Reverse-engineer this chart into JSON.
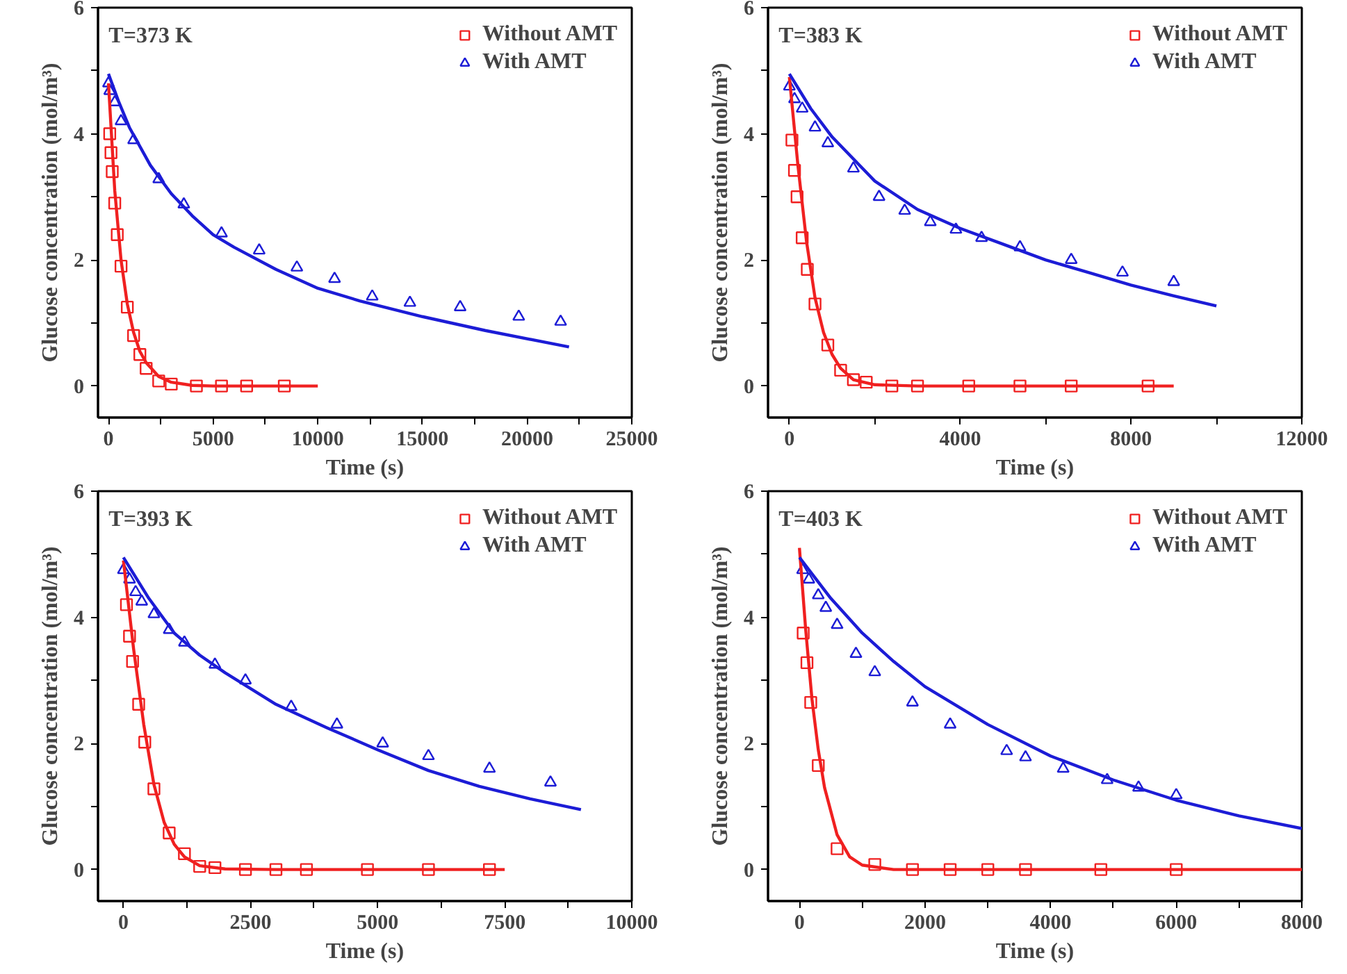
{
  "chart_data": [
    {
      "type": "scatter",
      "xlabel": "Time (s)",
      "ylabel": "Glucose concentration (mol/m³)",
      "annotations": [
        "T=373 K"
      ],
      "xlim": [
        -500,
        25000
      ],
      "ylim": [
        -0.5,
        6
      ],
      "xticks": [
        0,
        {
          "value": 2500,
          "label": null
        },
        5000,
        {
          "value": 7500,
          "label": null
        },
        10000,
        {
          "value": 12500,
          "label": null
        },
        15000,
        {
          "value": 17500,
          "label": null
        },
        20000,
        {
          "value": 22500,
          "label": null
        },
        25000
      ],
      "yticks": [
        0,
        {
          "value": 1,
          "label": null
        },
        2,
        {
          "value": 3,
          "label": null
        },
        4,
        {
          "value": 5,
          "label": null
        },
        6
      ],
      "grid": false,
      "legend": "top right",
      "series": [
        {
          "name": "Without AMT",
          "type": "scatter",
          "marker": "square",
          "color": "#f02020",
          "x": [
            60,
            120,
            180,
            300,
            420,
            600,
            900,
            1200,
            1500,
            1800,
            2400,
            3000,
            4200,
            5400,
            6600,
            8400
          ],
          "values": [
            4.0,
            3.7,
            3.4,
            2.9,
            2.4,
            1.9,
            1.25,
            0.8,
            0.5,
            0.28,
            0.08,
            0.03,
            0,
            0,
            0,
            0
          ]
        },
        {
          "name": "With AMT",
          "type": "scatter",
          "marker": "triangle",
          "color": "#1c1cd6",
          "x": [
            0,
            60,
            300,
            600,
            1200,
            2400,
            3600,
            5400,
            7200,
            9000,
            10800,
            12600,
            14400,
            16800,
            19600,
            21600
          ],
          "values": [
            4.8,
            4.68,
            4.5,
            4.2,
            3.9,
            3.28,
            2.88,
            2.42,
            2.15,
            1.88,
            1.7,
            1.42,
            1.32,
            1.25,
            1.1,
            1.02
          ]
        },
        {
          "type": "line",
          "marker": "none",
          "line_style": "solid",
          "color": "#f02020",
          "x": [
            0,
            300,
            600,
            900,
            1200,
            1500,
            1800,
            2400,
            3000,
            4000,
            5000,
            10000
          ],
          "values": [
            4.8,
            3.1,
            2.0,
            1.3,
            0.85,
            0.55,
            0.37,
            0.15,
            0.06,
            0.01,
            0,
            0
          ]
        },
        {
          "type": "line",
          "marker": "none",
          "line_style": "solid",
          "color": "#1c1cd6",
          "x": [
            0,
            500,
            1000,
            2000,
            3000,
            4000,
            5000,
            6000,
            8000,
            10000,
            12000,
            15000,
            18000,
            22000
          ],
          "values": [
            4.95,
            4.5,
            4.1,
            3.5,
            3.05,
            2.7,
            2.4,
            2.2,
            1.85,
            1.55,
            1.35,
            1.1,
            0.88,
            0.62
          ]
        }
      ]
    },
    {
      "type": "scatter",
      "xlabel": "Time (s)",
      "ylabel": "Glucose concentration (mol/m³)",
      "annotations": [
        "T=383 K"
      ],
      "xlim": [
        -500,
        12000
      ],
      "ylim": [
        -0.5,
        6
      ],
      "xticks": [
        0,
        {
          "value": 2000,
          "label": null
        },
        4000,
        {
          "value": 6000,
          "label": null
        },
        8000,
        {
          "value": 10000,
          "label": null
        },
        12000
      ],
      "yticks": [
        0,
        {
          "value": 1,
          "label": null
        },
        2,
        {
          "value": 3,
          "label": null
        },
        4,
        {
          "value": 5,
          "label": null
        },
        6
      ],
      "grid": false,
      "legend": "top right",
      "series": [
        {
          "name": "Without AMT",
          "type": "scatter",
          "marker": "square",
          "color": "#f02020",
          "x": [
            60,
            120,
            180,
            300,
            420,
            600,
            900,
            1200,
            1500,
            1800,
            2400,
            3000,
            4200,
            5400,
            6600,
            8400
          ],
          "values": [
            3.9,
            3.42,
            3.0,
            2.35,
            1.85,
            1.3,
            0.65,
            0.25,
            0.1,
            0.06,
            0,
            0,
            0,
            0,
            0,
            0
          ]
        },
        {
          "name": "With AMT",
          "type": "scatter",
          "marker": "triangle",
          "color": "#1c1cd6",
          "x": [
            0,
            120,
            300,
            600,
            900,
            1500,
            2100,
            2700,
            3300,
            3900,
            4500,
            5400,
            6600,
            7800,
            9000
          ],
          "values": [
            4.75,
            4.55,
            4.4,
            4.1,
            3.85,
            3.45,
            3.0,
            2.78,
            2.6,
            2.48,
            2.35,
            2.2,
            2.0,
            1.8,
            1.65
          ]
        },
        {
          "type": "line",
          "marker": "none",
          "line_style": "solid",
          "color": "#f02020",
          "x": [
            0,
            200,
            400,
            600,
            800,
            1000,
            1200,
            1500,
            2000,
            3000,
            9000
          ],
          "values": [
            4.9,
            3.5,
            2.3,
            1.4,
            0.85,
            0.5,
            0.28,
            0.1,
            0.02,
            0,
            0
          ]
        },
        {
          "type": "line",
          "marker": "none",
          "line_style": "solid",
          "color": "#1c1cd6",
          "x": [
            0,
            500,
            1000,
            2000,
            3000,
            4000,
            5000,
            6000,
            7000,
            8000,
            9000,
            10000
          ],
          "values": [
            4.95,
            4.4,
            3.95,
            3.25,
            2.8,
            2.5,
            2.25,
            2.0,
            1.8,
            1.6,
            1.43,
            1.27
          ]
        }
      ]
    },
    {
      "type": "scatter",
      "xlabel": "Time (s)",
      "ylabel": "Glucose concentration (mol/m³)",
      "annotations": [
        "T=393 K"
      ],
      "xlim": [
        -500,
        10000
      ],
      "ylim": [
        -0.5,
        6
      ],
      "xticks": [
        0,
        {
          "value": 1250,
          "label": null
        },
        2500,
        {
          "value": 3750,
          "label": null
        },
        5000,
        {
          "value": 6250,
          "label": null
        },
        7500,
        {
          "value": 8750,
          "label": null
        },
        10000
      ],
      "yticks": [
        0,
        {
          "value": 1,
          "label": null
        },
        2,
        {
          "value": 3,
          "label": null
        },
        4,
        {
          "value": 5,
          "label": null
        },
        6
      ],
      "grid": false,
      "legend": "top right",
      "series": [
        {
          "name": "Without AMT",
          "type": "scatter",
          "marker": "square",
          "color": "#f02020",
          "x": [
            60,
            120,
            180,
            300,
            420,
            600,
            900,
            1200,
            1500,
            1800,
            2400,
            3000,
            3600,
            4800,
            6000,
            7200
          ],
          "values": [
            4.2,
            3.7,
            3.3,
            2.62,
            2.02,
            1.28,
            0.58,
            0.25,
            0.05,
            0.03,
            0,
            0,
            0,
            0,
            0,
            0
          ]
        },
        {
          "name": "With AMT",
          "type": "scatter",
          "marker": "triangle",
          "color": "#1c1cd6",
          "x": [
            0,
            120,
            240,
            360,
            600,
            900,
            1200,
            1800,
            2400,
            3300,
            4200,
            5100,
            6000,
            7200,
            8400
          ],
          "values": [
            4.75,
            4.6,
            4.4,
            4.25,
            4.05,
            3.8,
            3.6,
            3.25,
            3.0,
            2.58,
            2.3,
            2.0,
            1.8,
            1.6,
            1.38
          ]
        },
        {
          "type": "line",
          "marker": "none",
          "line_style": "solid",
          "color": "#f02020",
          "x": [
            0,
            200,
            400,
            600,
            800,
            1000,
            1200,
            1500,
            2000,
            3000,
            7500
          ],
          "values": [
            4.9,
            3.5,
            2.3,
            1.35,
            0.75,
            0.4,
            0.2,
            0.06,
            0.01,
            0,
            0
          ]
        },
        {
          "type": "line",
          "marker": "none",
          "line_style": "solid",
          "color": "#1c1cd6",
          "x": [
            0,
            500,
            1000,
            1500,
            2000,
            3000,
            4000,
            5000,
            6000,
            7000,
            8000,
            9000
          ],
          "values": [
            4.95,
            4.3,
            3.75,
            3.4,
            3.12,
            2.62,
            2.25,
            1.9,
            1.57,
            1.32,
            1.12,
            0.95
          ]
        }
      ]
    },
    {
      "type": "scatter",
      "xlabel": "Time (s)",
      "ylabel": "Glucose concentration (mol/m³)",
      "annotations": [
        "T=403 K"
      ],
      "xlim": [
        -500,
        8000
      ],
      "ylim": [
        -0.5,
        6
      ],
      "xticks": [
        0,
        {
          "value": 1000,
          "label": null
        },
        2000,
        {
          "value": 3000,
          "label": null
        },
        4000,
        {
          "value": 5000,
          "label": null
        },
        6000,
        {
          "value": 7000,
          "label": null
        },
        8000
      ],
      "yticks": [
        0,
        {
          "value": 1,
          "label": null
        },
        2,
        {
          "value": 3,
          "label": null
        },
        4,
        {
          "value": 5,
          "label": null
        },
        6
      ],
      "grid": false,
      "legend": "top right",
      "series": [
        {
          "name": "Without AMT",
          "type": "scatter",
          "marker": "square",
          "color": "#f02020",
          "x": [
            60,
            120,
            180,
            300,
            600,
            1200,
            1800,
            2400,
            3000,
            3600,
            4800,
            6000
          ],
          "values": [
            3.75,
            3.28,
            2.65,
            1.65,
            0.33,
            0.08,
            0,
            0,
            0,
            0,
            0,
            0
          ]
        },
        {
          "name": "With AMT",
          "type": "scatter",
          "marker": "triangle",
          "color": "#1c1cd6",
          "x": [
            50,
            150,
            300,
            420,
            600,
            900,
            1200,
            1800,
            2400,
            3300,
            3600,
            4200,
            4900,
            5400,
            6000
          ],
          "values": [
            4.75,
            4.6,
            4.35,
            4.15,
            3.88,
            3.42,
            3.13,
            2.65,
            2.3,
            1.88,
            1.78,
            1.6,
            1.42,
            1.3,
            1.18
          ]
        },
        {
          "type": "line",
          "marker": "none",
          "line_style": "solid",
          "color": "#f02020",
          "x": [
            0,
            100,
            200,
            300,
            400,
            600,
            800,
            1000,
            1500,
            8000
          ],
          "values": [
            5.1,
            3.8,
            2.7,
            1.9,
            1.3,
            0.55,
            0.2,
            0.07,
            0,
            0
          ]
        },
        {
          "type": "line",
          "marker": "none",
          "line_style": "solid",
          "color": "#1c1cd6",
          "x": [
            0,
            500,
            1000,
            1500,
            2000,
            3000,
            4000,
            5000,
            6000,
            7000,
            8000
          ],
          "values": [
            4.95,
            4.3,
            3.75,
            3.3,
            2.9,
            2.3,
            1.8,
            1.42,
            1.1,
            0.85,
            0.65
          ]
        }
      ]
    }
  ]
}
